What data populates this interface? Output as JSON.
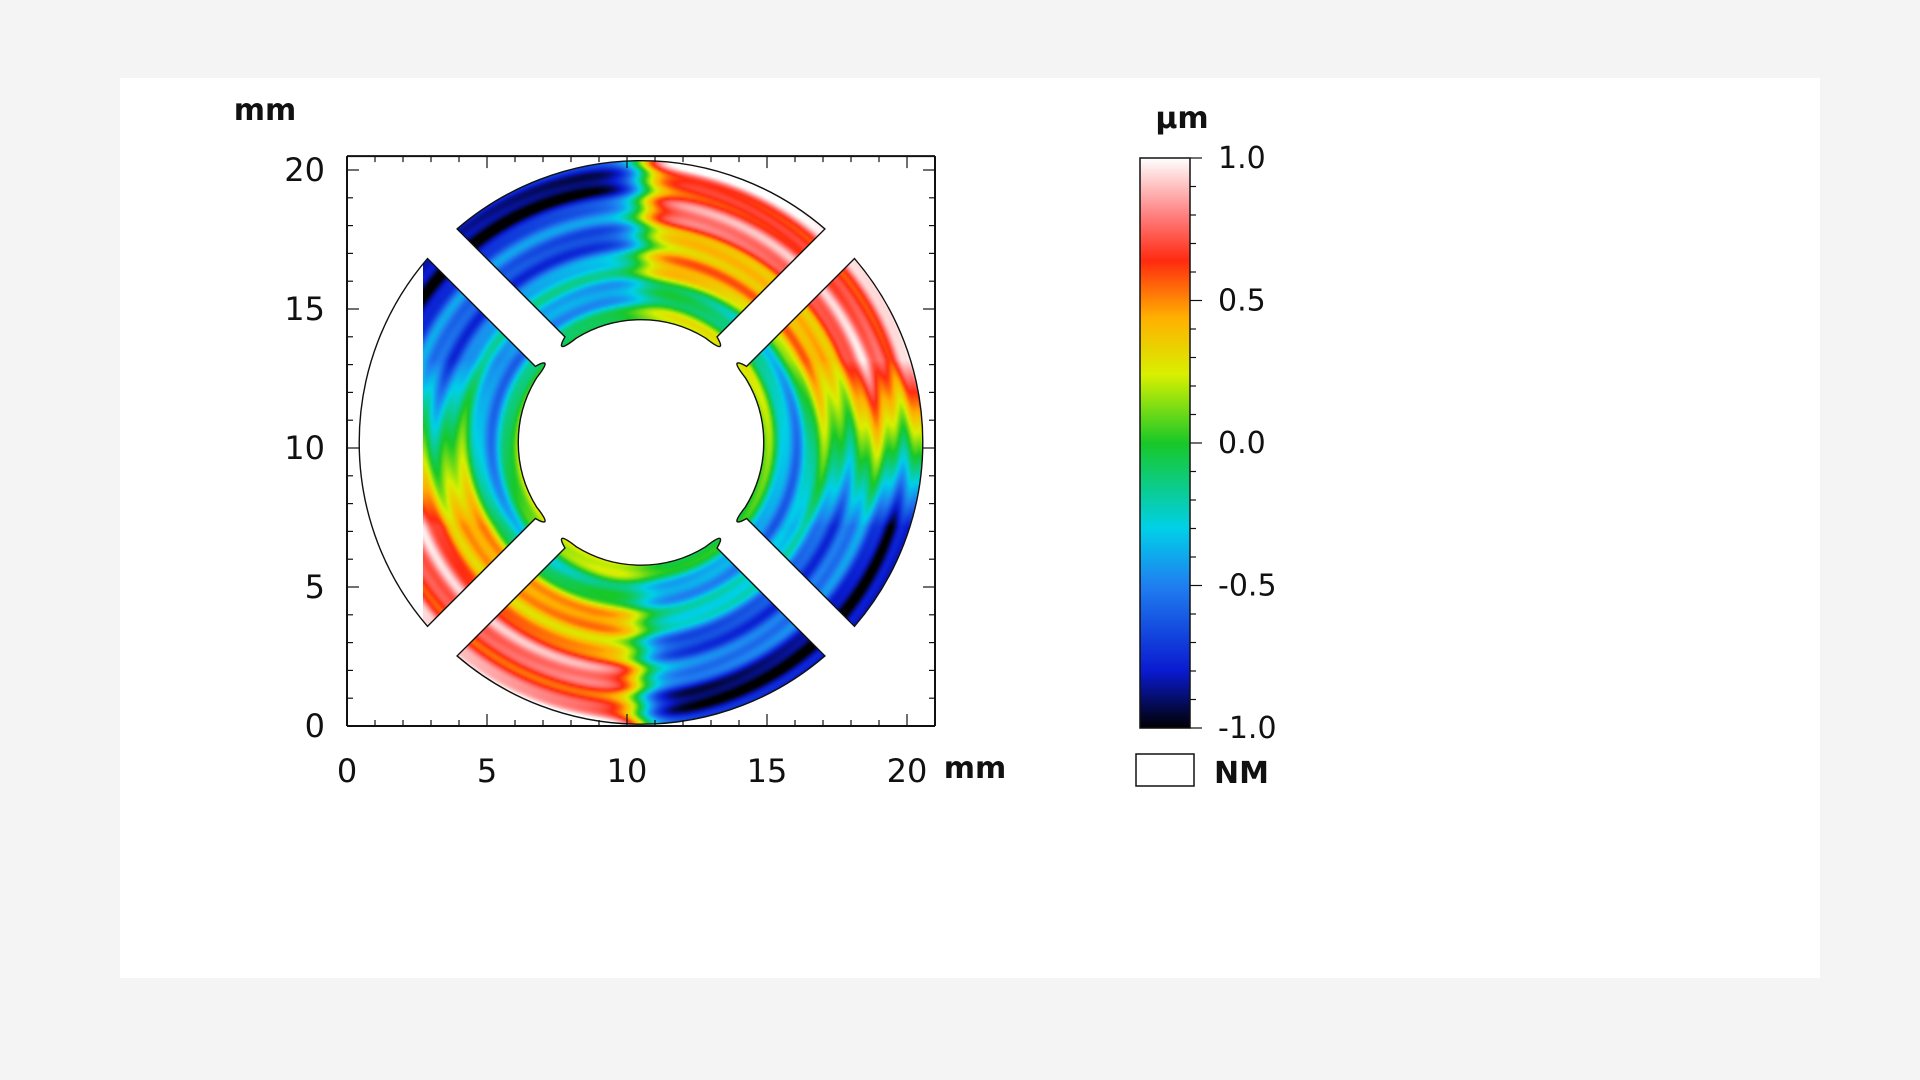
{
  "chart_data": {
    "type": "heatmap",
    "title": "",
    "x_unit": "mm",
    "y_unit": "mm",
    "xlim": [
      0,
      21
    ],
    "ylim": [
      0,
      20.5
    ],
    "x_ticks": [
      "0",
      "5",
      "10",
      "15",
      "20"
    ],
    "y_ticks": [
      "0",
      "5",
      "10",
      "15",
      "20"
    ],
    "part": {
      "center_mm": [
        10.5,
        10.2
      ],
      "outer_radius_mm": 10.1,
      "inner_radius_mm": 4.4,
      "slot_count": 4,
      "slot_angles_deg": [
        45,
        135,
        225,
        315
      ],
      "slot_width_mm": 1.5
    },
    "colorbar": {
      "unit": "µm",
      "min": -1.0,
      "max": 1.0,
      "ticks": [
        "1.0",
        "0.5",
        "0.0",
        "-0.5",
        "-1.0"
      ],
      "tick_values": [
        1.0,
        0.5,
        0.0,
        -0.5,
        -1.0
      ],
      "colormap": [
        "#000000",
        "#1f3fe0",
        "#00c8f0",
        "#18d020",
        "#f0f000",
        "#ff9000",
        "#ff1010",
        "#ffffff"
      ]
    },
    "legend": {
      "nm_label": "NM"
    }
  }
}
